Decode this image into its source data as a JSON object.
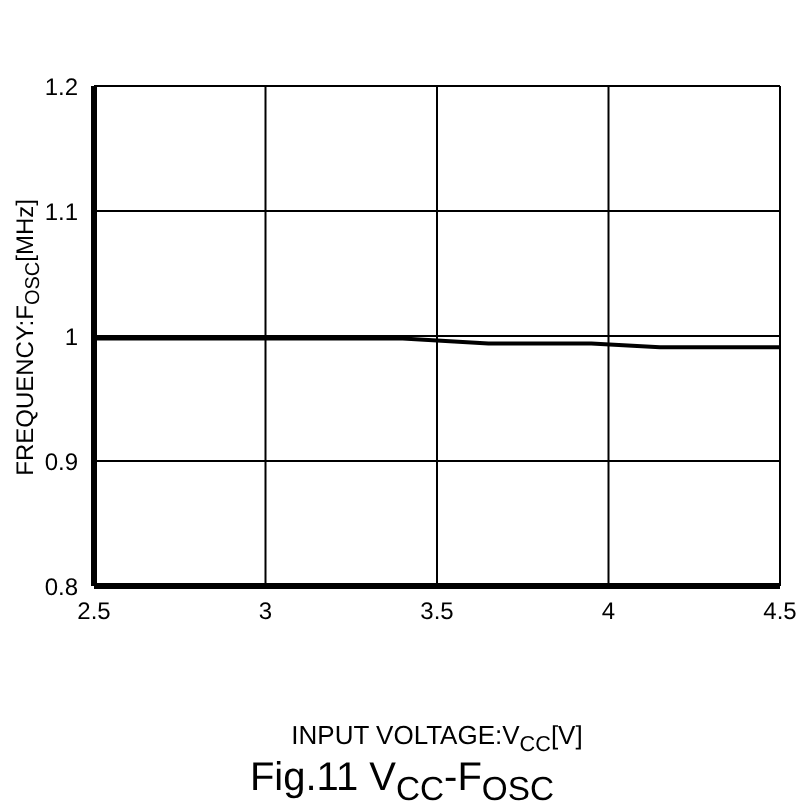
{
  "chart_data": {
    "type": "line",
    "title": "Fig.11 V$_{CC}$-F$_{OSC}$",
    "xlabel": "INPUT VOLTAGE:V$_{CC}$[V]",
    "ylabel": "FREQUENCY:F$_{OSC}$[MHz]",
    "x": [
      2.5,
      3.4,
      3.65,
      3.95,
      4.15,
      4.5
    ],
    "series": [
      {
        "color": "#000000",
        "values": [
          0.998,
          0.998,
          0.994,
          0.994,
          0.991,
          0.991
        ]
      }
    ],
    "xlim": [
      2.5,
      4.5
    ],
    "xticks": [
      2.5,
      3,
      3.5,
      4,
      4.5
    ],
    "ylim": [
      0.8,
      1.2
    ],
    "yticks": [
      0.8,
      0.9,
      1,
      1.1,
      1.2
    ],
    "grid": true,
    "marker": "none",
    "line_style": "solid"
  }
}
